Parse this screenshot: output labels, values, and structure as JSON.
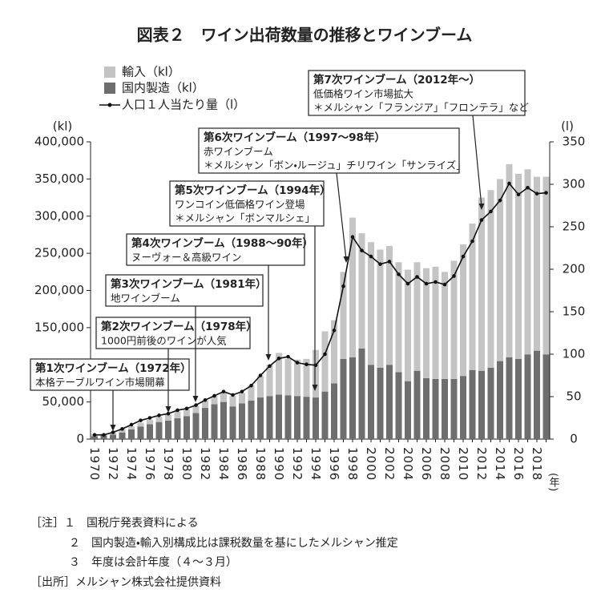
{
  "chart_data": {
    "type": "bar",
    "title": "図表２　ワイン出荷数量の推移とワインブーム",
    "y_unit": "(kl)",
    "y2_unit": "(l)",
    "x_unit": "(年)",
    "categories": [
      "1970",
      null,
      "1972",
      null,
      "1974",
      null,
      "1976",
      null,
      "1978",
      null,
      "1980",
      null,
      "1982",
      null,
      "1984",
      null,
      "1986",
      null,
      "1988",
      null,
      "1990",
      null,
      "1992",
      null,
      "1994",
      null,
      "1996",
      null,
      "1998",
      null,
      "2000",
      null,
      "2002",
      null,
      "2004",
      null,
      "2006",
      null,
      "2008",
      null,
      "2010",
      null,
      "2012",
      null,
      "2014",
      null,
      "2016",
      null,
      "2018",
      null
    ],
    "series": [
      {
        "name": "輸入（kl）",
        "type": "bar",
        "color": "#c4c4c4",
        "values": [
          2500,
          2000,
          3000,
          5000,
          4000,
          5000,
          6000,
          7000,
          8000,
          9000,
          9000,
          10000,
          10000,
          11000,
          12000,
          14000,
          14000,
          20000,
          29000,
          42000,
          56000,
          49000,
          49000,
          51000,
          64000,
          81000,
          85000,
          117000,
          188000,
          155000,
          165000,
          159000,
          160000,
          148000,
          150000,
          146000,
          148000,
          151000,
          144000,
          159000,
          177000,
          197000,
          233000,
          239000,
          245000,
          260000,
          249000,
          249000,
          234000,
          239000
        ]
      },
      {
        "name": "国内製造（kl）",
        "type": "bar",
        "color": "#6e6e6e",
        "values": [
          4000,
          5000,
          6000,
          9000,
          13000,
          17000,
          20000,
          23000,
          25000,
          28000,
          31000,
          35000,
          42000,
          47000,
          50000,
          44000,
          48000,
          52000,
          56000,
          58000,
          60000,
          59000,
          58000,
          57000,
          56000,
          64000,
          75000,
          108000,
          110000,
          122000,
          100000,
          96000,
          100000,
          90000,
          78000,
          92000,
          82000,
          81000,
          81000,
          81000,
          85000,
          93000,
          92000,
          96000,
          105000,
          110000,
          108000,
          114000,
          119000,
          114000
        ]
      },
      {
        "name": "人口１人当たり量（l）",
        "type": "line",
        "axis": "y2",
        "color": "#111111",
        "values": [
          5,
          5,
          8,
          12,
          17,
          22,
          25,
          28,
          30,
          34,
          36,
          40,
          46,
          51,
          56,
          52,
          56,
          63,
          75,
          86,
          95,
          97,
          90,
          88,
          87,
          100,
          128,
          180,
          238,
          222,
          215,
          206,
          209,
          194,
          183,
          191,
          183,
          185,
          182,
          192,
          215,
          233,
          258,
          268,
          281,
          301,
          288,
          296,
          289,
          290
        ]
      }
    ],
    "ylim": [
      0,
      400000
    ],
    "yticks": [
      {
        "value": 0,
        "label": "0"
      },
      {
        "value": 50000,
        "label": "50,000"
      },
      {
        "value": 100000,
        "label": "100,000"
      },
      {
        "value": 150000,
        "label": "150,000"
      },
      {
        "value": 200000,
        "label": "200,000"
      },
      {
        "value": 250000,
        "label": "250,000"
      },
      {
        "value": 300000,
        "label": "300,000"
      },
      {
        "value": 350000,
        "label": "350,000"
      },
      {
        "value": 400000,
        "label": "400,000"
      }
    ],
    "y2lim": [
      0,
      350
    ],
    "y2ticks": [
      0,
      50,
      100,
      150,
      200,
      250,
      300,
      350
    ],
    "annotations": [
      {
        "title": "第1次ワインブーム（1972年）",
        "lines": [
          "本格テーブルワイン市場開幕"
        ]
      },
      {
        "title": "第2次ワインブーム（1978年）",
        "lines": [
          "1000円前後のワインが人気"
        ]
      },
      {
        "title": "第3次ワインブーム（1981年）",
        "lines": [
          "地ワインブーム"
        ]
      },
      {
        "title": "第4次ワインブーム（1988〜90年）",
        "lines": [
          "ヌーヴォー＆高級ワイン"
        ]
      },
      {
        "title": "第5次ワインブーム（1994年）",
        "lines": [
          "ワンコイン低価格ワイン登場",
          "＊メルシャン「ボンマルシェ」"
        ]
      },
      {
        "title": "第6次ワインブーム（1997〜98年）",
        "lines": [
          "赤ワインブーム",
          "＊メルシャン「ボン・ルージュ」チリワイン「サンライズ」"
        ]
      },
      {
        "title": "第7次ワインブーム（2012年〜）",
        "lines": [
          "低価格ワイン市場拡大",
          "＊メルシャン「フランジア」「フロンテラ」など"
        ]
      }
    ],
    "notes": [
      "［注］１　国税庁発表資料による",
      "２　国内製造・輸入別構成比は課税数量を基にしたメルシャン推定",
      "３　年度は会計年度（４〜３月）",
      "［出所］メルシャン株式会社提供資料"
    ]
  }
}
